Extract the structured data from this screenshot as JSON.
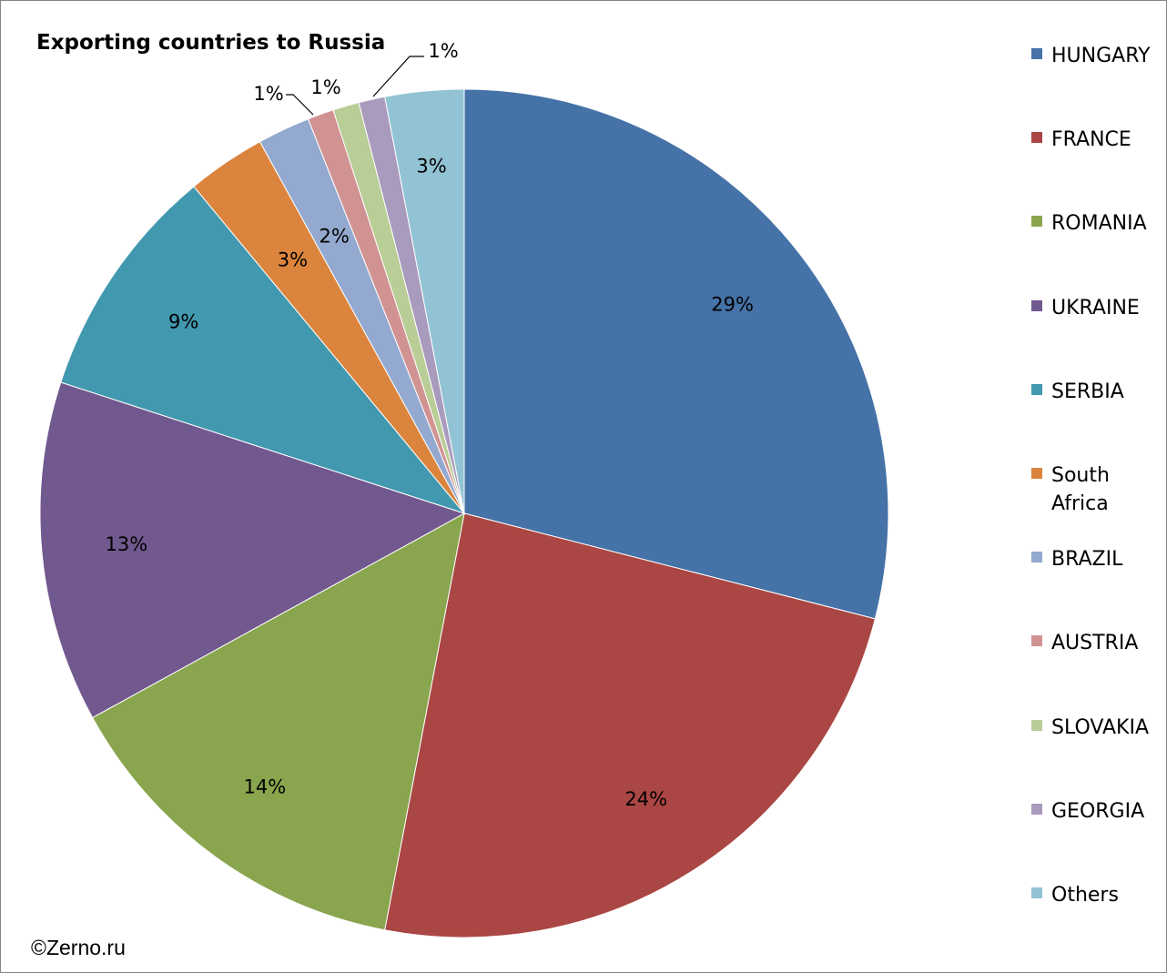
{
  "chart_data": {
    "type": "pie",
    "title": "Exporting countries to Russia",
    "source": "©Zerno.ru",
    "legend_position": "right",
    "slices": [
      {
        "name": "HUNGARY",
        "value": 29,
        "label": "29%",
        "color": "#4572A7"
      },
      {
        "name": "FRANCE",
        "value": 24,
        "label": "24%",
        "color": "#AA4643"
      },
      {
        "name": "ROMANIA",
        "value": 14,
        "label": "14%",
        "color": "#89A54E"
      },
      {
        "name": "UKRAINE",
        "value": 13,
        "label": "13%",
        "color": "#71588F"
      },
      {
        "name": "SERBIA",
        "value": 9,
        "label": "9%",
        "color": "#4198AF"
      },
      {
        "name": "South Africa",
        "value": 3,
        "label": "3%",
        "color": "#DB843D"
      },
      {
        "name": "BRAZIL",
        "value": 2,
        "label": "2%",
        "color": "#93A9CF"
      },
      {
        "name": "AUSTRIA",
        "value": 1,
        "label": "1%",
        "color": "#D19392"
      },
      {
        "name": "SLOVAKIA",
        "value": 1,
        "label": "1%",
        "color": "#B9CD96"
      },
      {
        "name": "GEORGIA",
        "value": 1,
        "label": "1%",
        "color": "#A99BBD"
      },
      {
        "name": "Others",
        "value": 3,
        "label": "3%",
        "color": "#92C3D4"
      }
    ]
  }
}
